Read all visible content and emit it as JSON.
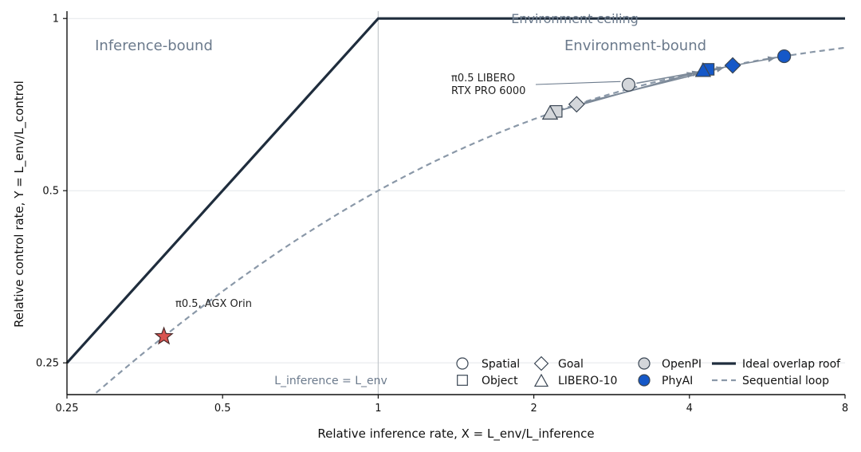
{
  "chart_data": {
    "type": "scatter",
    "scale": "log2",
    "xlabel": "Relative inference rate, X = L_env/L_inference",
    "ylabel": "Relative control rate, Y = L_env/L_control",
    "xlim": [
      0.25,
      8
    ],
    "ylim": [
      0.22,
      1.03
    ],
    "xticks": [
      {
        "value": 0.25,
        "label": "0.25"
      },
      {
        "value": 0.5,
        "label": "0.5"
      },
      {
        "value": 1,
        "label": "1"
      },
      {
        "value": 2,
        "label": "2"
      },
      {
        "value": 4,
        "label": "4"
      },
      {
        "value": 8,
        "label": "8"
      }
    ],
    "yticks": [
      {
        "value": 0.25,
        "label": "0.25"
      },
      {
        "value": 0.5,
        "label": "0.5"
      },
      {
        "value": 1,
        "label": "1"
      }
    ],
    "grid": "horizontal",
    "region_labels": {
      "left": "Inference-bound",
      "right": "Environment-bound",
      "ceiling": "Environment ceiling",
      "divider": "L_inference = L_env"
    },
    "annotations": {
      "libero_line1": "π0.5 LIBERO",
      "libero_line2": "RTX PRO 6000",
      "orin": "π0.5, AGX Orin"
    },
    "points": [
      {
        "family": "OpenPI",
        "task": "Spatial",
        "x": 3.05,
        "y": 0.766
      },
      {
        "family": "OpenPI",
        "task": "Object",
        "x": 2.21,
        "y": 0.688
      },
      {
        "family": "OpenPI",
        "task": "Goal",
        "x": 2.42,
        "y": 0.708
      },
      {
        "family": "OpenPI",
        "task": "LIBERO-10",
        "x": 2.15,
        "y": 0.683
      },
      {
        "family": "PhyAI",
        "task": "Spatial",
        "x": 6.1,
        "y": 0.859
      },
      {
        "family": "PhyAI",
        "task": "Object",
        "x": 4.35,
        "y": 0.815
      },
      {
        "family": "PhyAI",
        "task": "Goal",
        "x": 4.85,
        "y": 0.828
      },
      {
        "family": "PhyAI",
        "task": "LIBERO-10",
        "x": 4.25,
        "y": 0.811
      }
    ],
    "orin_point": {
      "x": 0.385,
      "y": 0.278
    },
    "colors": {
      "roof": "#1f2d3d",
      "sequential": "#8a98a8",
      "openpi": "#d3d6da",
      "phyai": "#1558c8",
      "orin": "#d9534f",
      "region_text": "#6b7a8c",
      "grid": "#e4e7ea",
      "divider": "#c4c8cc"
    },
    "legend": {
      "placement": "bottom-right",
      "shapes": [
        {
          "label": "Spatial",
          "marker": "circle"
        },
        {
          "label": "Object",
          "marker": "square"
        },
        {
          "label": "Goal",
          "marker": "diamond"
        },
        {
          "label": "LIBERO-10",
          "marker": "triangle"
        }
      ],
      "families": [
        {
          "label": "OpenPI",
          "color": "#d3d6da"
        },
        {
          "label": "PhyAI",
          "color": "#1558c8"
        }
      ],
      "lines": [
        {
          "label": "Ideal overlap roof",
          "style": "solid"
        },
        {
          "label": "Sequential loop",
          "style": "dashed"
        }
      ]
    }
  }
}
